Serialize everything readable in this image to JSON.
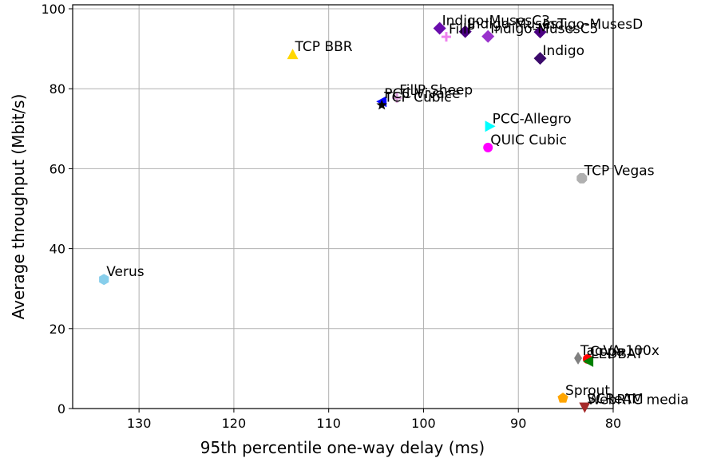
{
  "chart_data": {
    "type": "scatter",
    "title": "",
    "xlabel": "95th percentile one-way delay (ms)",
    "ylabel": "Average throughput (Mbit/s)",
    "xlim": [
      137,
      80
    ],
    "ylim": [
      0,
      101
    ],
    "x_reversed": true,
    "grid": true,
    "xticks": [
      130,
      120,
      110,
      100,
      90,
      80
    ],
    "yticks": [
      0,
      20,
      40,
      60,
      80,
      100
    ],
    "points": [
      {
        "label": "Indigo-MusesC3",
        "x": 98.3,
        "y": 95.1,
        "marker": "diamond",
        "color": "#6a0dad"
      },
      {
        "label": "Indigo-MusesT",
        "x": 95.6,
        "y": 94.3,
        "marker": "diamond",
        "color": "#4b0082"
      },
      {
        "label": "Indigo-MusesD",
        "x": 87.7,
        "y": 94.2,
        "marker": "diamond",
        "color": "#4b0082"
      },
      {
        "label": "Indigo-MusesC5",
        "x": 93.2,
        "y": 93.1,
        "marker": "diamond",
        "color": "#9932cc"
      },
      {
        "label": "FillP",
        "x": 97.6,
        "y": 93.0,
        "marker": "plus",
        "color": "#ee82ee"
      },
      {
        "label": "Indigo",
        "x": 87.7,
        "y": 87.6,
        "marker": "diamond",
        "color": "#3b0a6b"
      },
      {
        "label": "TCP BBR",
        "x": 113.8,
        "y": 88.6,
        "marker": "triangle-up",
        "color": "#ffd700"
      },
      {
        "label": "FillP-Sheep",
        "x": 102.8,
        "y": 77.7,
        "marker": "plus",
        "color": "#dda0dd"
      },
      {
        "label": "PCC-Vivace",
        "x": 104.4,
        "y": 76.8,
        "marker": "triangle-left",
        "color": "#0000ff"
      },
      {
        "label": "TCP Cubic",
        "x": 104.4,
        "y": 75.9,
        "marker": "star",
        "color": "#000000"
      },
      {
        "label": "PCC-Allegro",
        "x": 93.0,
        "y": 70.6,
        "marker": "triangle-right",
        "color": "#00ffff"
      },
      {
        "label": "QUIC Cubic",
        "x": 93.2,
        "y": 65.3,
        "marker": "circle",
        "color": "#ff00ff"
      },
      {
        "label": "TCP Vegas",
        "x": 83.3,
        "y": 57.6,
        "marker": "octagon",
        "color": "#b0b0b0"
      },
      {
        "label": "Verus",
        "x": 133.7,
        "y": 32.3,
        "marker": "hexagon",
        "color": "#87ceeb"
      },
      {
        "label": "Copa",
        "x": 82.7,
        "y": 12.4,
        "marker": "circle",
        "color": "#ff0000"
      },
      {
        "label": "TaoVA-100x",
        "x": 83.7,
        "y": 12.6,
        "marker": "diamond-thin",
        "color": "#808080"
      },
      {
        "label": "LEDBAT",
        "x": 82.6,
        "y": 11.8,
        "marker": "triangle-left",
        "color": "#008000"
      },
      {
        "label": "Sprout",
        "x": 85.3,
        "y": 2.6,
        "marker": "pentagon",
        "color": "#ffa500"
      },
      {
        "label": "WebRTC media",
        "x": 83.0,
        "y": 0.3,
        "marker": "triangle-down",
        "color": "#a52a2a"
      },
      {
        "label": "SCReAM",
        "x": 83.0,
        "y": 0.5,
        "marker": "none",
        "color": "#a52a2a"
      }
    ]
  }
}
